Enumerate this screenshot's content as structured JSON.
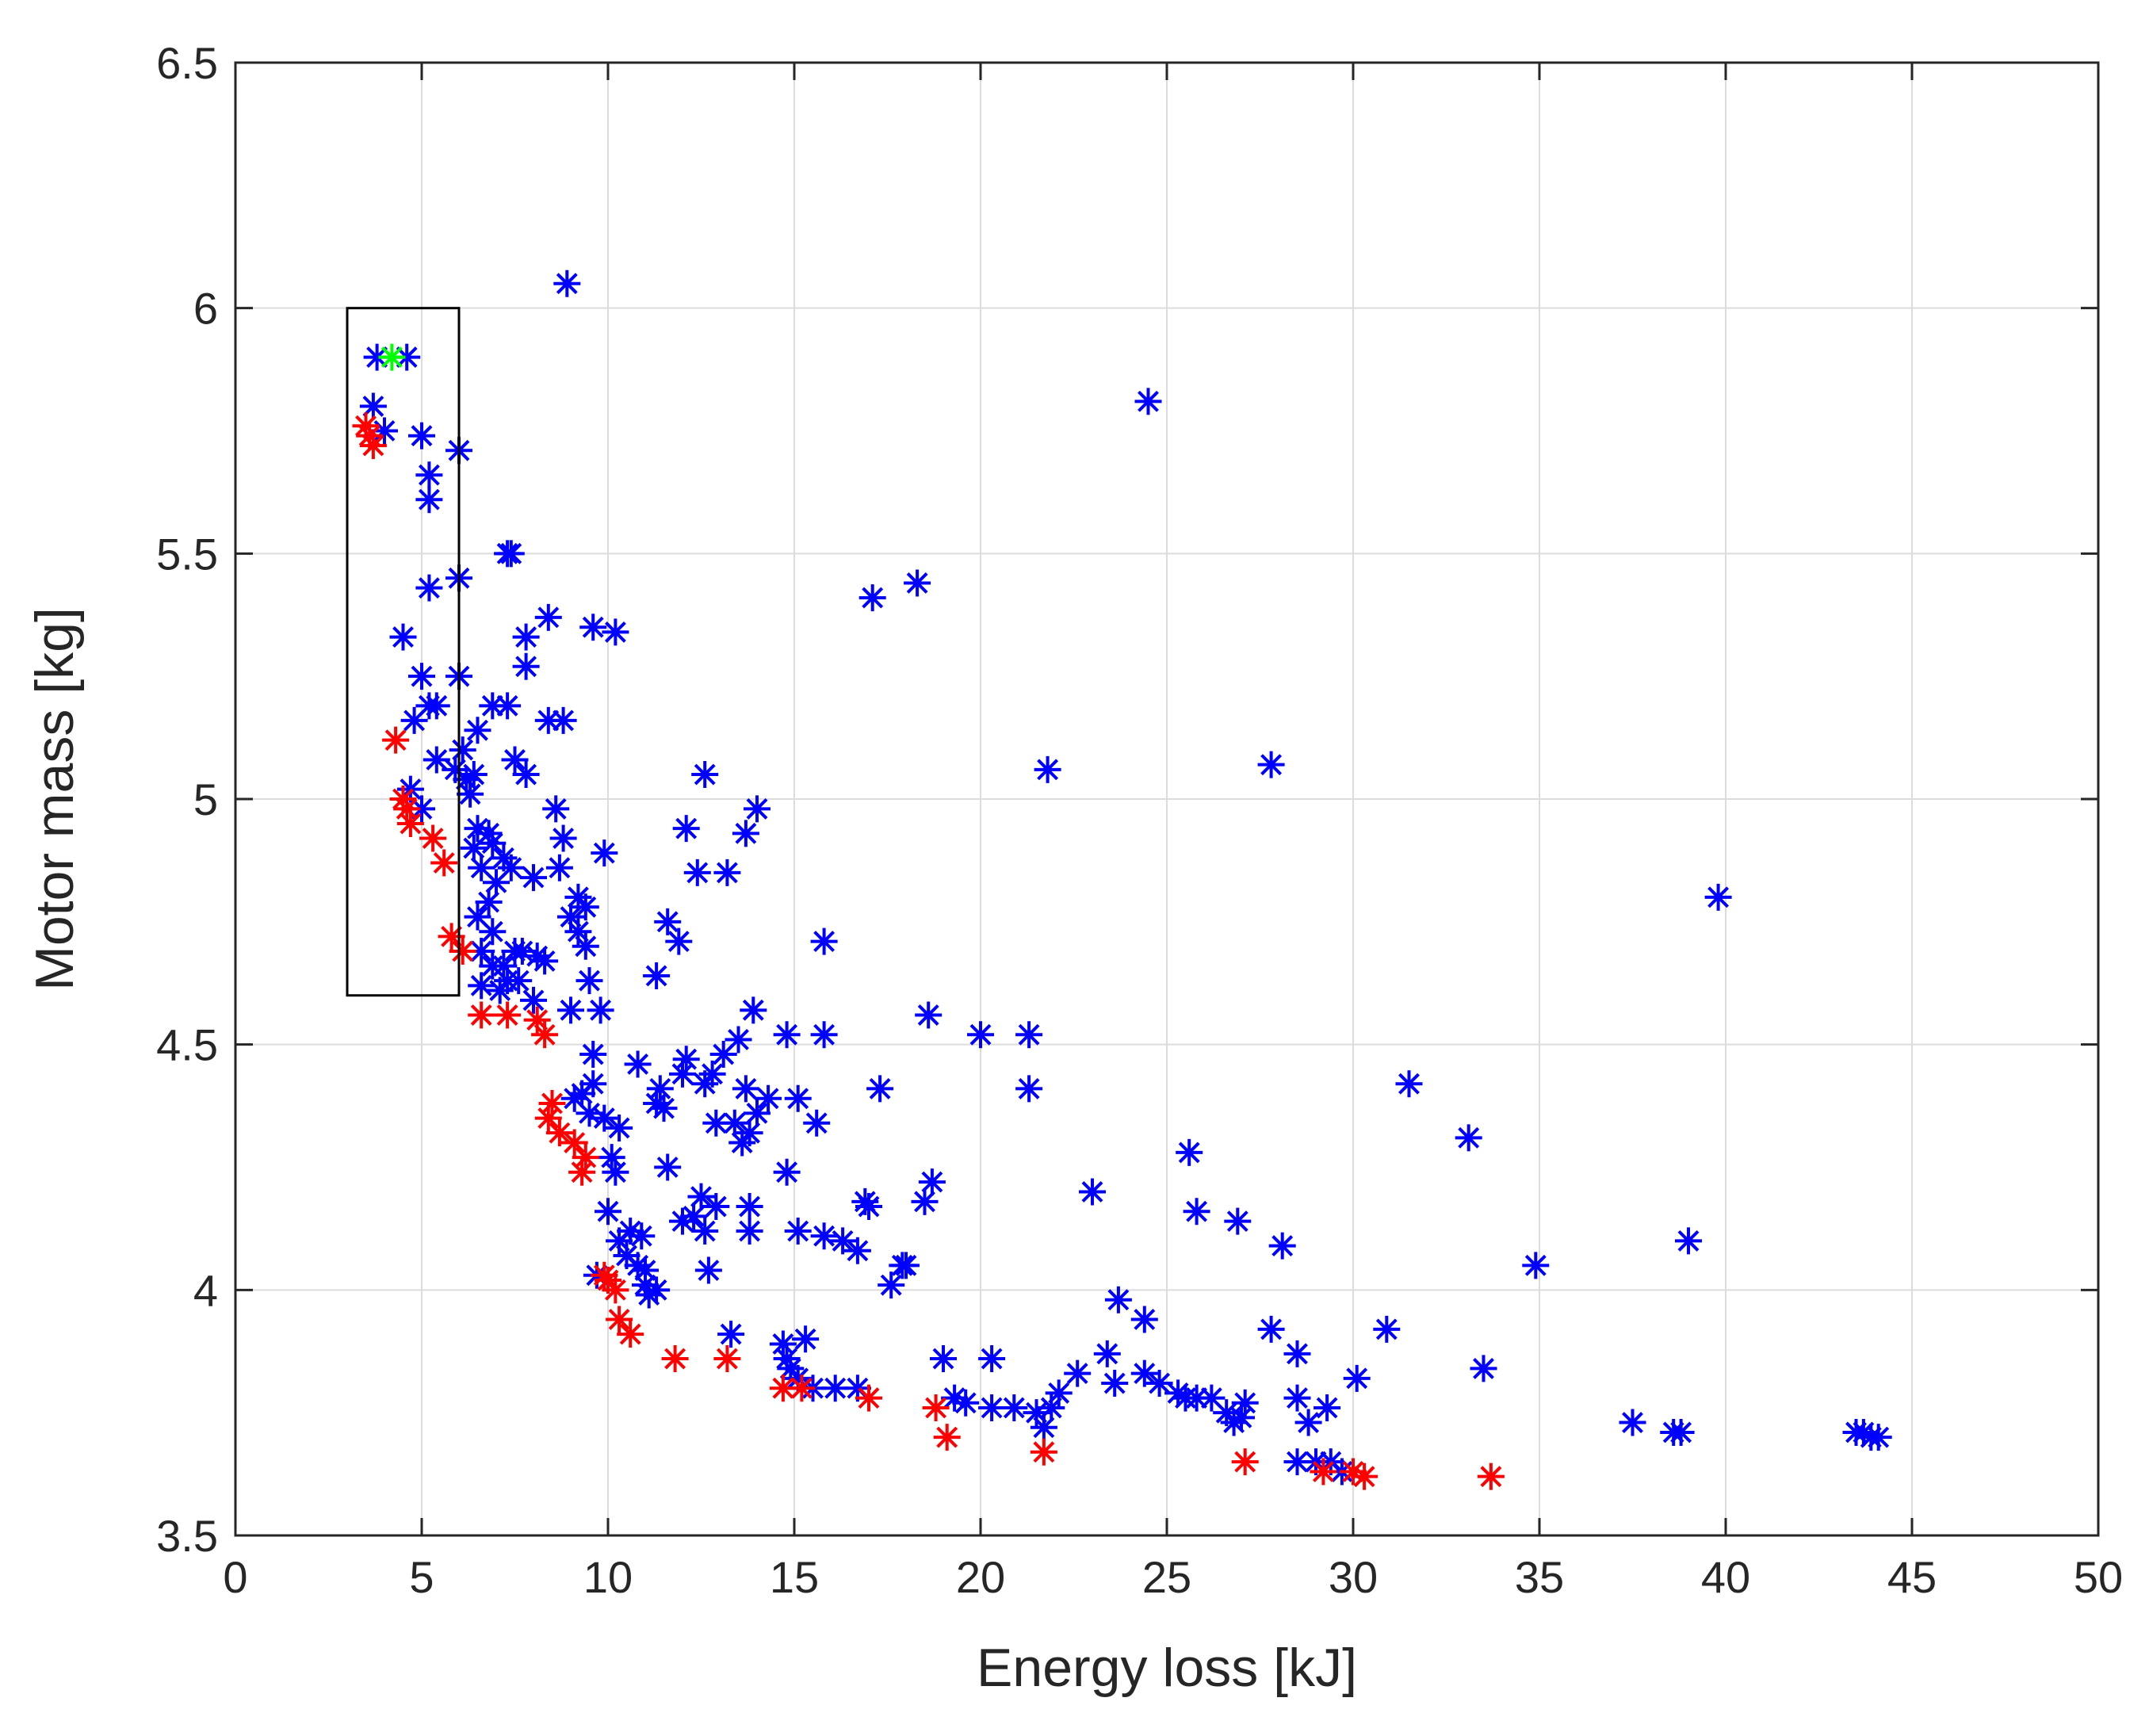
{
  "chart_data": {
    "type": "scatter",
    "xlabel": "Energy loss [kJ]",
    "ylabel": "Motor mass [kg]",
    "xlim": [
      0,
      50
    ],
    "ylim": [
      3.5,
      6.5
    ],
    "xticks": [
      "0",
      "5",
      "10",
      "15",
      "20",
      "25",
      "30",
      "35",
      "40",
      "45",
      "50"
    ],
    "yticks": [
      "3.5",
      "4",
      "4.5",
      "5",
      "5.5",
      "6",
      "6.5"
    ],
    "grid": true,
    "marker": "asterisk",
    "colors": {
      "dominated": "#0000ff",
      "pareto": "#ff0000",
      "selected": "#00ff00",
      "box": "#000000"
    },
    "selection_box": {
      "x": [
        3,
        6
      ],
      "y": [
        4.6,
        6.0
      ]
    },
    "series": [
      {
        "name": "dominated",
        "color": "#0000ff",
        "points": [
          [
            3.8,
            5.9
          ],
          [
            4.6,
            5.9
          ],
          [
            3.7,
            5.8
          ],
          [
            4.0,
            5.75
          ],
          [
            5.0,
            5.74
          ],
          [
            6.0,
            5.71
          ],
          [
            5.2,
            5.66
          ],
          [
            5.2,
            5.61
          ],
          [
            7.3,
            5.5
          ],
          [
            7.4,
            5.5
          ],
          [
            5.2,
            5.43
          ],
          [
            6.0,
            5.45
          ],
          [
            4.5,
            5.33
          ],
          [
            9.6,
            5.35
          ],
          [
            10.2,
            5.34
          ],
          [
            8.4,
            5.37
          ],
          [
            7.8,
            5.33
          ],
          [
            7.8,
            5.27
          ],
          [
            5.0,
            5.25
          ],
          [
            6.0,
            5.25
          ],
          [
            5.4,
            5.19
          ],
          [
            5.2,
            5.19
          ],
          [
            4.8,
            5.16
          ],
          [
            6.9,
            5.19
          ],
          [
            7.3,
            5.19
          ],
          [
            8.4,
            5.16
          ],
          [
            8.8,
            5.16
          ],
          [
            6.5,
            5.14
          ],
          [
            5.4,
            5.08
          ],
          [
            5.9,
            5.06
          ],
          [
            6.2,
            5.04
          ],
          [
            6.4,
            5.05
          ],
          [
            7.5,
            5.08
          ],
          [
            7.8,
            5.05
          ],
          [
            6.1,
            5.1
          ],
          [
            4.7,
            5.02
          ],
          [
            5.0,
            4.98
          ],
          [
            6.3,
            5.01
          ],
          [
            8.6,
            4.98
          ],
          [
            8.8,
            4.92
          ],
          [
            9.9,
            4.89
          ],
          [
            6.5,
            4.94
          ],
          [
            6.8,
            4.93
          ],
          [
            6.9,
            4.91
          ],
          [
            7.2,
            4.88
          ],
          [
            7.4,
            4.86
          ],
          [
            6.4,
            4.9
          ],
          [
            6.6,
            4.86
          ],
          [
            7.0,
            4.83
          ],
          [
            6.8,
            4.79
          ],
          [
            6.5,
            4.76
          ],
          [
            6.9,
            4.73
          ],
          [
            6.6,
            4.69
          ],
          [
            6.9,
            4.66
          ],
          [
            7.2,
            4.66
          ],
          [
            7.5,
            4.69
          ],
          [
            7.7,
            4.69
          ],
          [
            7.3,
            4.63
          ],
          [
            6.6,
            4.62
          ],
          [
            7.1,
            4.61
          ],
          [
            7.6,
            4.63
          ],
          [
            8.1,
            4.68
          ],
          [
            8.3,
            4.67
          ],
          [
            8.0,
            4.84
          ],
          [
            8.7,
            4.86
          ],
          [
            9.2,
            4.8
          ],
          [
            9.4,
            4.78
          ],
          [
            9.0,
            4.76
          ],
          [
            9.2,
            4.73
          ],
          [
            9.4,
            4.7
          ],
          [
            9.5,
            4.63
          ],
          [
            8.0,
            4.59
          ],
          [
            9.0,
            4.57
          ],
          [
            9.8,
            4.57
          ],
          [
            9.6,
            4.48
          ],
          [
            9.6,
            4.42
          ],
          [
            9.3,
            4.4
          ],
          [
            9.1,
            4.39
          ],
          [
            9.5,
            4.36
          ],
          [
            9.9,
            4.35
          ],
          [
            10.3,
            4.33
          ],
          [
            10.1,
            4.27
          ],
          [
            10.2,
            4.24
          ],
          [
            10.0,
            4.16
          ],
          [
            10.3,
            4.1
          ],
          [
            10.6,
            4.12
          ],
          [
            10.9,
            4.11
          ],
          [
            10.5,
            4.07
          ],
          [
            10.8,
            4.05
          ],
          [
            11.0,
            4.01
          ],
          [
            11.1,
            3.99
          ],
          [
            11.3,
            4.0
          ],
          [
            11.0,
            4.04
          ],
          [
            9.7,
            4.03
          ],
          [
            11.3,
            4.64
          ],
          [
            11.6,
            4.75
          ],
          [
            11.9,
            4.71
          ],
          [
            12.1,
            4.94
          ],
          [
            12.6,
            5.05
          ],
          [
            12.4,
            4.85
          ],
          [
            13.2,
            4.85
          ],
          [
            13.7,
            4.93
          ],
          [
            14.0,
            4.98
          ],
          [
            13.9,
            4.57
          ],
          [
            13.5,
            4.51
          ],
          [
            13.1,
            4.48
          ],
          [
            12.8,
            4.44
          ],
          [
            12.6,
            4.42
          ],
          [
            12.1,
            4.47
          ],
          [
            12.0,
            4.44
          ],
          [
            11.4,
            4.41
          ],
          [
            11.5,
            4.37
          ],
          [
            11.3,
            4.38
          ],
          [
            10.8,
            4.46
          ],
          [
            11.6,
            4.25
          ],
          [
            12.0,
            4.14
          ],
          [
            12.5,
            4.19
          ],
          [
            12.3,
            4.15
          ],
          [
            12.9,
            4.17
          ],
          [
            12.6,
            4.12
          ],
          [
            12.9,
            4.34
          ],
          [
            13.4,
            4.34
          ],
          [
            13.7,
            4.41
          ],
          [
            14.0,
            4.36
          ],
          [
            13.8,
            4.32
          ],
          [
            13.6,
            4.3
          ],
          [
            14.3,
            4.39
          ],
          [
            13.8,
            4.17
          ],
          [
            13.8,
            4.12
          ],
          [
            14.8,
            4.52
          ],
          [
            15.8,
            4.52
          ],
          [
            15.8,
            4.71
          ],
          [
            15.1,
            4.39
          ],
          [
            15.6,
            4.34
          ],
          [
            14.8,
            4.24
          ],
          [
            15.1,
            4.12
          ],
          [
            15.8,
            4.11
          ],
          [
            16.3,
            4.1
          ],
          [
            16.7,
            4.08
          ],
          [
            17.3,
            4.41
          ],
          [
            16.9,
            4.18
          ],
          [
            17.0,
            4.17
          ],
          [
            18.0,
            4.05
          ],
          [
            17.9,
            4.05
          ],
          [
            17.6,
            4.01
          ],
          [
            18.7,
            4.22
          ],
          [
            18.5,
            4.18
          ],
          [
            18.6,
            4.56
          ],
          [
            17.1,
            5.41
          ],
          [
            18.3,
            5.44
          ],
          [
            12.7,
            4.04
          ],
          [
            13.3,
            3.91
          ],
          [
            14.7,
            3.89
          ],
          [
            14.8,
            3.86
          ],
          [
            14.9,
            3.84
          ],
          [
            15.1,
            3.82
          ],
          [
            15.3,
            3.9
          ],
          [
            15.5,
            3.8
          ],
          [
            16.1,
            3.8
          ],
          [
            16.7,
            3.8
          ],
          [
            19.0,
            3.86
          ],
          [
            19.3,
            3.78
          ],
          [
            19.6,
            3.77
          ],
          [
            20.3,
            3.86
          ],
          [
            20.3,
            3.76
          ],
          [
            20.9,
            3.76
          ],
          [
            21.5,
            3.75
          ],
          [
            21.7,
            3.72
          ],
          [
            21.9,
            3.76
          ],
          [
            22.1,
            3.79
          ],
          [
            22.6,
            3.83
          ],
          [
            23.4,
            3.87
          ],
          [
            23.6,
            3.81
          ],
          [
            23.7,
            3.98
          ],
          [
            24.4,
            3.94
          ],
          [
            24.4,
            3.83
          ],
          [
            24.8,
            3.81
          ],
          [
            25.3,
            3.79
          ],
          [
            25.5,
            3.78
          ],
          [
            25.8,
            3.78
          ],
          [
            26.2,
            3.78
          ],
          [
            26.6,
            3.75
          ],
          [
            26.8,
            3.73
          ],
          [
            27.0,
            3.74
          ],
          [
            27.1,
            3.77
          ],
          [
            27.8,
            3.92
          ],
          [
            28.5,
            3.87
          ],
          [
            28.5,
            3.78
          ],
          [
            28.8,
            3.73
          ],
          [
            29.0,
            3.65
          ],
          [
            29.4,
            3.65
          ],
          [
            29.7,
            3.63
          ],
          [
            29.3,
            3.76
          ],
          [
            30.1,
            3.82
          ],
          [
            30.9,
            3.92
          ],
          [
            28.5,
            3.65
          ],
          [
            20.0,
            4.52
          ],
          [
            21.3,
            4.52
          ],
          [
            21.3,
            4.41
          ],
          [
            23.0,
            4.2
          ],
          [
            25.6,
            4.28
          ],
          [
            25.8,
            4.16
          ],
          [
            26.9,
            4.14
          ],
          [
            28.1,
            4.09
          ],
          [
            21.8,
            5.06
          ],
          [
            24.5,
            5.81
          ],
          [
            27.8,
            5.07
          ],
          [
            31.5,
            4.42
          ],
          [
            33.1,
            4.31
          ],
          [
            34.9,
            4.05
          ],
          [
            33.5,
            3.84
          ],
          [
            37.5,
            3.73
          ],
          [
            38.6,
            3.71
          ],
          [
            38.8,
            3.71
          ],
          [
            39.0,
            4.1
          ],
          [
            39.8,
            4.8
          ],
          [
            43.5,
            3.71
          ],
          [
            43.7,
            3.71
          ],
          [
            43.9,
            3.7
          ],
          [
            44.1,
            3.7
          ],
          [
            8.9,
            6.05
          ]
        ]
      },
      {
        "name": "pareto",
        "color": "#ff0000",
        "points": [
          [
            3.5,
            5.76
          ],
          [
            3.6,
            5.74
          ],
          [
            3.7,
            5.72
          ],
          [
            4.3,
            5.12
          ],
          [
            4.5,
            5.0
          ],
          [
            4.6,
            4.98
          ],
          [
            4.7,
            4.95
          ],
          [
            5.3,
            4.92
          ],
          [
            5.6,
            4.87
          ],
          [
            5.8,
            4.72
          ],
          [
            6.1,
            4.69
          ],
          [
            6.6,
            4.56
          ],
          [
            7.3,
            4.56
          ],
          [
            8.1,
            4.55
          ],
          [
            8.3,
            4.52
          ],
          [
            8.5,
            4.38
          ],
          [
            8.4,
            4.35
          ],
          [
            8.7,
            4.32
          ],
          [
            9.1,
            4.3
          ],
          [
            9.4,
            4.27
          ],
          [
            9.3,
            4.24
          ],
          [
            9.9,
            4.03
          ],
          [
            10.0,
            4.02
          ],
          [
            10.2,
            4.0
          ],
          [
            10.3,
            3.94
          ],
          [
            10.6,
            3.91
          ],
          [
            11.8,
            3.86
          ],
          [
            13.2,
            3.86
          ],
          [
            14.7,
            3.8
          ],
          [
            15.2,
            3.8
          ],
          [
            17.0,
            3.78
          ],
          [
            18.8,
            3.76
          ],
          [
            19.1,
            3.7
          ],
          [
            21.7,
            3.67
          ],
          [
            27.1,
            3.65
          ],
          [
            29.2,
            3.63
          ],
          [
            30.0,
            3.63
          ],
          [
            30.3,
            3.62
          ],
          [
            33.7,
            3.62
          ]
        ]
      },
      {
        "name": "selected",
        "color": "#00ff00",
        "points": [
          [
            4.2,
            5.9
          ]
        ]
      }
    ]
  }
}
